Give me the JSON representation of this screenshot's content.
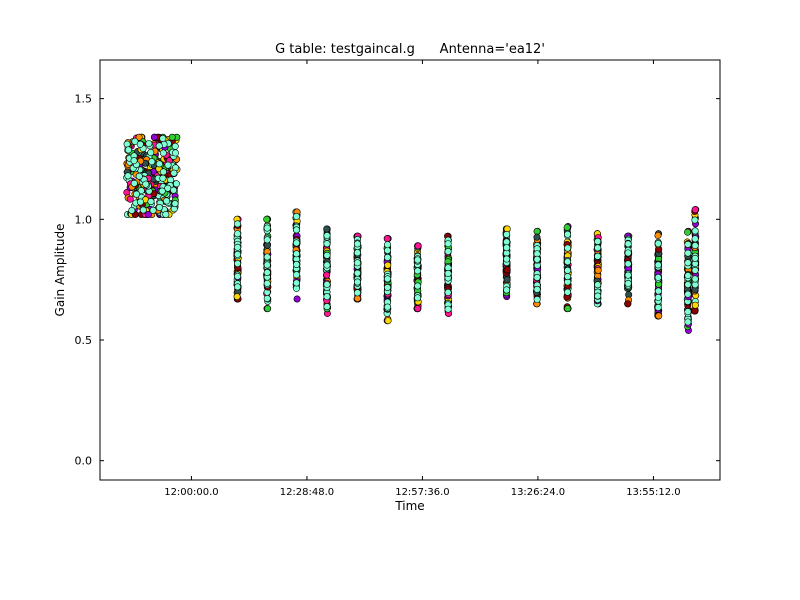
{
  "chart_data": {
    "type": "scatter",
    "title": "G table: testgaincal.g      Antenna='ea12'",
    "xlabel": "Time",
    "ylabel": "Gain Amplitude",
    "x_ticks": [
      "12:00:00.0",
      "12:28:48.0",
      "12:57:36.0",
      "13:26:24.0",
      "13:55:12.0"
    ],
    "x_tick_minutes": [
      720,
      748.8,
      777.6,
      806.4,
      835.2
    ],
    "xlim_minutes": [
      697.2,
      851.8
    ],
    "y_ticks": [
      "0.0",
      "0.5",
      "1.0",
      "1.5"
    ],
    "y_tick_values": [
      0.0,
      0.5,
      1.0,
      1.5
    ],
    "ylim": [
      -0.08,
      1.66
    ],
    "grid": false,
    "legend": "none",
    "marker": "circle",
    "series_colors": [
      "#7fffd4",
      "#ff1493",
      "#8b0000",
      "#9400d3",
      "#2f4f4f",
      "#32cd32",
      "#ffd700",
      "#ff8c00"
    ],
    "groups": [
      {
        "time_minutes": [
          703.8,
          716.4
        ],
        "amplitude_min": 1.02,
        "amplitude_max": 1.34
      },
      {
        "time_minutes": [
          731.5,
          731.5
        ],
        "amplitude_min": 0.67,
        "amplitude_max": 1.0
      },
      {
        "time_minutes": [
          738.9,
          738.9
        ],
        "amplitude_min": 0.63,
        "amplitude_max": 1.0
      },
      {
        "time_minutes": [
          746.2,
          746.2
        ],
        "amplitude_min": 0.67,
        "amplitude_max": 1.03
      },
      {
        "time_minutes": [
          753.8,
          753.8
        ],
        "amplitude_min": 0.61,
        "amplitude_max": 0.96
      },
      {
        "time_minutes": [
          761.4,
          761.4
        ],
        "amplitude_min": 0.67,
        "amplitude_max": 0.93
      },
      {
        "time_minutes": [
          768.9,
          768.9
        ],
        "amplitude_min": 0.58,
        "amplitude_max": 0.92
      },
      {
        "time_minutes": [
          776.4,
          776.4
        ],
        "amplitude_min": 0.63,
        "amplitude_max": 0.89
      },
      {
        "time_minutes": [
          784.0,
          784.0
        ],
        "amplitude_min": 0.61,
        "amplitude_max": 0.93
      },
      {
        "time_minutes": [
          798.6,
          798.6
        ],
        "amplitude_min": 0.68,
        "amplitude_max": 0.96
      },
      {
        "time_minutes": [
          806.2,
          806.2
        ],
        "amplitude_min": 0.65,
        "amplitude_max": 0.95
      },
      {
        "time_minutes": [
          813.8,
          813.8
        ],
        "amplitude_min": 0.63,
        "amplitude_max": 0.97
      },
      {
        "time_minutes": [
          821.3,
          821.3
        ],
        "amplitude_min": 0.65,
        "amplitude_max": 0.94
      },
      {
        "time_minutes": [
          828.9,
          828.9
        ],
        "amplitude_min": 0.65,
        "amplitude_max": 0.93
      },
      {
        "time_minutes": [
          836.4,
          836.4
        ],
        "amplitude_min": 0.6,
        "amplitude_max": 0.94
      },
      {
        "time_minutes": [
          843.8,
          843.8
        ],
        "amplitude_min": 0.54,
        "amplitude_max": 0.95
      },
      {
        "time_minutes": [
          845.6,
          845.6
        ],
        "amplitude_min": 0.62,
        "amplitude_max": 1.04
      }
    ]
  }
}
